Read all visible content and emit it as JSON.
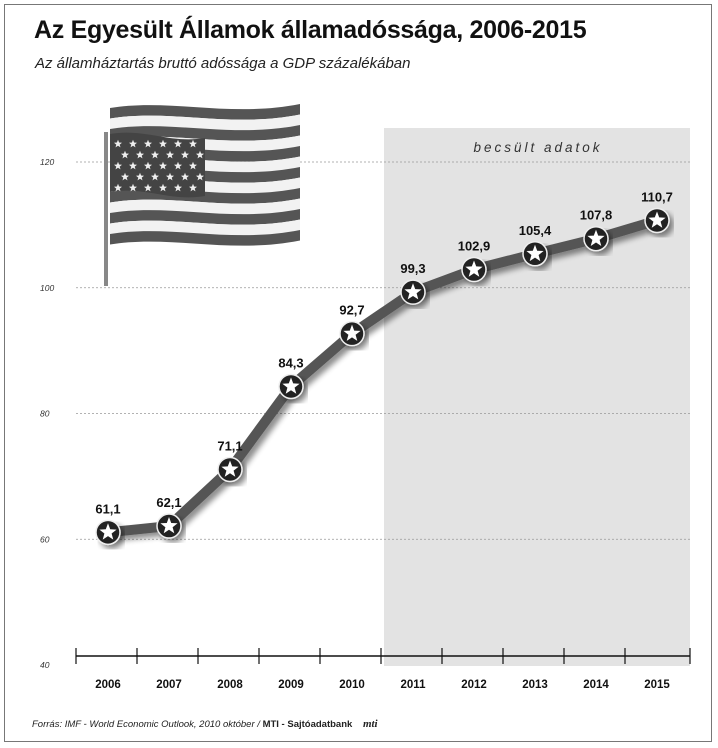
{
  "title": "Az Egyesült Államok államadóssága, 2006-2015",
  "subtitle": "Az államháztartás bruttó adóssága a GDP százalékában",
  "footer": {
    "source": "Forrás: IMF - World Economic Outlook, 2010 október /",
    "brand": "MTI - Sajtóadatbank",
    "logo": "mti"
  },
  "flag_icon": "us-flag-icon",
  "colors": {
    "line": "#555555",
    "estimate_band": "#e3e3e3",
    "marker": "#ffffff"
  },
  "chart_data": {
    "type": "line",
    "title": "Az Egyesült Államok államadóssága, 2006-2015",
    "subtitle": "Az államháztartás bruttó adóssága a GDP százalékában",
    "xlabel": "",
    "ylabel": "",
    "categories": [
      "2006",
      "2007",
      "2008",
      "2009",
      "2010",
      "2011",
      "2012",
      "2013",
      "2014",
      "2015"
    ],
    "values": [
      61.1,
      62.1,
      71.1,
      84.3,
      92.7,
      99.3,
      102.9,
      105.4,
      107.8,
      110.7
    ],
    "data_labels": [
      "61,1",
      "62,1",
      "71,1",
      "84,3",
      "92,7",
      "99,3",
      "102,9",
      "105,4",
      "107,8",
      "110,7"
    ],
    "ylim": [
      40,
      120
    ],
    "yticks": [
      "40",
      "60",
      "80",
      "100",
      "120"
    ],
    "grid": true,
    "estimate_from": "2011",
    "estimate_label": "becsült adatok"
  }
}
